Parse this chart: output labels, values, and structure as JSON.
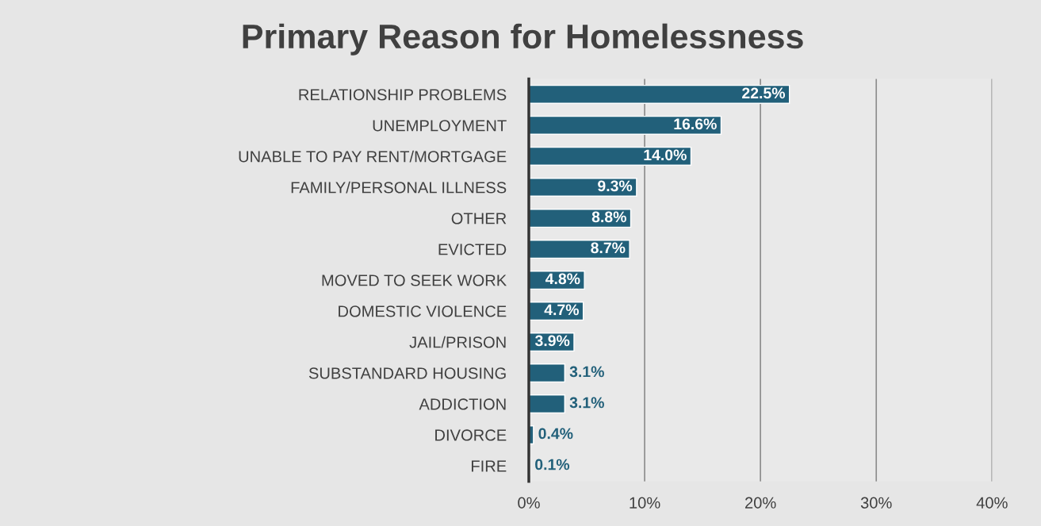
{
  "chart_data": {
    "type": "bar",
    "orientation": "horizontal",
    "title": "Primary Reason for Homelessness",
    "categories": [
      "RELATIONSHIP PROBLEMS",
      "UNEMPLOYMENT",
      "UNABLE TO PAY RENT/MORTGAGE",
      "FAMILY/PERSONAL ILLNESS",
      "OTHER",
      "EVICTED",
      "MOVED TO SEEK WORK",
      "DOMESTIC VIOLENCE",
      "JAIL/PRISON",
      "SUBSTANDARD HOUSING",
      "ADDICTION",
      "DIVORCE",
      "FIRE"
    ],
    "values": [
      22.5,
      16.6,
      14.0,
      9.3,
      8.8,
      8.7,
      4.8,
      4.7,
      3.9,
      3.1,
      3.1,
      0.4,
      0.1
    ],
    "value_labels": [
      "22.5%",
      "16.6%",
      "14.0%",
      "9.3%",
      "8.8%",
      "8.7%",
      "4.8%",
      "4.7%",
      "3.9%",
      "3.1%",
      "3.1%",
      "0.4%",
      "0.1%"
    ],
    "color": "#22607a",
    "xlim": [
      0,
      40
    ],
    "xticks": [
      {
        "value": 0,
        "label": "0%"
      },
      {
        "value": 10,
        "label": "10%"
      },
      {
        "value": 20,
        "label": "20%"
      },
      {
        "value": 30,
        "label": "30%"
      },
      {
        "value": 40,
        "label": "40%"
      }
    ],
    "grid": "x",
    "legend": false
  }
}
